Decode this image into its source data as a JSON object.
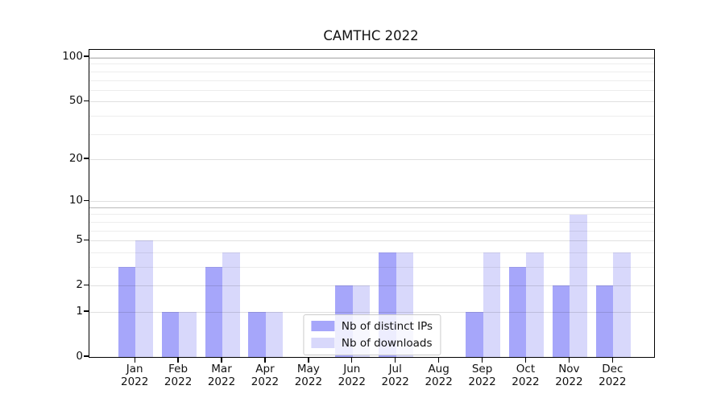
{
  "chart_data": {
    "type": "bar",
    "title": "CAMTHC 2022",
    "categories": [
      "Jan 2022",
      "Feb 2022",
      "Mar 2022",
      "Apr 2022",
      "May 2022",
      "Jun 2022",
      "Jul 2022",
      "Aug 2022",
      "Sep 2022",
      "Oct 2022",
      "Nov 2022",
      "Dec 2022"
    ],
    "series": [
      {
        "name": "Nb of distinct IPs",
        "color": "#a6a6fa",
        "values": [
          3,
          1,
          3,
          1,
          0,
          2,
          4,
          0,
          1,
          3,
          2,
          2
        ]
      },
      {
        "name": "Nb of downloads",
        "color": "#d8d8fb",
        "values": [
          5,
          1,
          4,
          1,
          0,
          2,
          4,
          0,
          4,
          4,
          8,
          4
        ]
      }
    ],
    "xlabel": "",
    "ylabel": "",
    "yscale": "log1p",
    "ylim": [
      0,
      112
    ],
    "yticks": [
      0,
      1,
      2,
      5,
      10,
      20,
      50,
      100
    ],
    "minor_gridlines": [
      3,
      4,
      6,
      7,
      8,
      30,
      40,
      60,
      70,
      80,
      90
    ],
    "decade_gridlines": [
      9,
      99
    ],
    "grid": true,
    "legend_position": "lower center"
  }
}
